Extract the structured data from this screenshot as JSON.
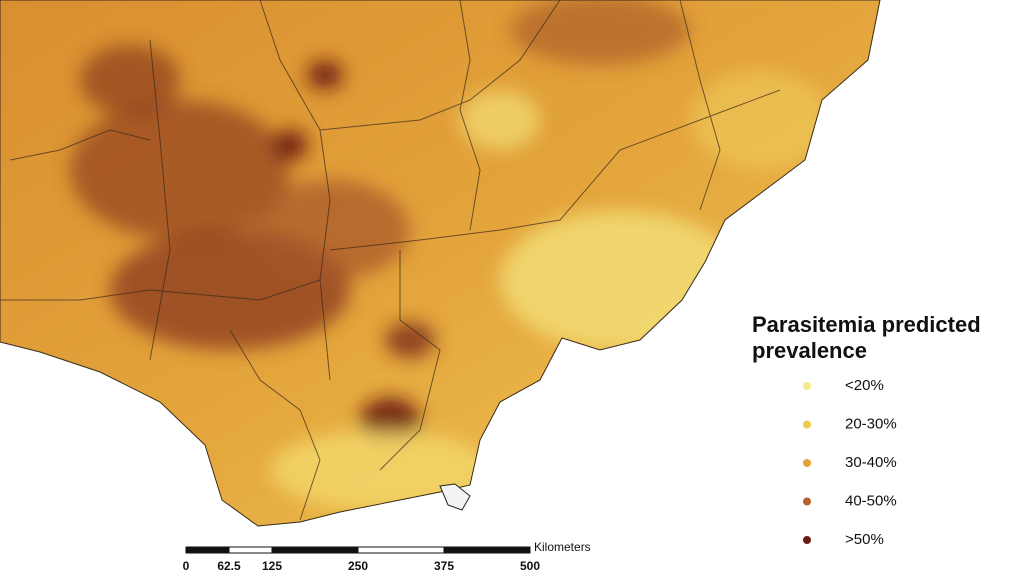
{
  "legend": {
    "title": "Parasitemia predicted prevalence",
    "items": [
      {
        "label": "<20%",
        "color": "#f6ea8c"
      },
      {
        "label": "20-30%",
        "color": "#eecb4e"
      },
      {
        "label": "30-40%",
        "color": "#e3a23a"
      },
      {
        "label": "40-50%",
        "color": "#b5632b"
      },
      {
        "label": ">50%",
        "color": "#6a1b12"
      }
    ]
  },
  "scale_bar": {
    "unit": "Kilometers",
    "ticks": [
      0,
      62.5,
      125,
      250,
      375,
      500
    ]
  }
}
